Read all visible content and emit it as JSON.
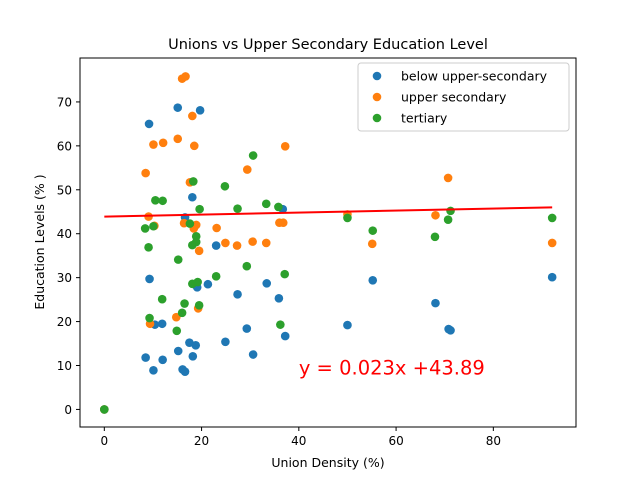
{
  "chart_data": {
    "type": "scatter",
    "title": "Unions vs Upper Secondary Education Level",
    "xlabel": "Union Density (%)",
    "ylabel": "Education Levels (% )",
    "xlim": [
      -5,
      97
    ],
    "ylim": [
      -4,
      80
    ],
    "x_ticks": [
      0,
      20,
      40,
      60,
      80
    ],
    "y_ticks": [
      0,
      10,
      20,
      30,
      40,
      50,
      60,
      70
    ],
    "x_tick_labels": [
      "0",
      "20",
      "40",
      "60",
      "80"
    ],
    "y_tick_labels": [
      "0",
      "10",
      "20",
      "30",
      "40",
      "50",
      "60",
      "70"
    ],
    "grid": false,
    "legend_position": "top-right",
    "series": [
      {
        "name": "below upper-secondary",
        "color": "#1f77b4",
        "points": [
          [
            0,
            0
          ],
          [
            8.5,
            11.8
          ],
          [
            9.2,
            65
          ],
          [
            9.3,
            29.7
          ],
          [
            10.1,
            8.9
          ],
          [
            10.4,
            19.3
          ],
          [
            11.9,
            19.5
          ],
          [
            12.0,
            11.3
          ],
          [
            15.1,
            68.7
          ],
          [
            15.2,
            13.3
          ],
          [
            16.1,
            9.1
          ],
          [
            16.6,
            8.6
          ],
          [
            16.6,
            43.7
          ],
          [
            17.5,
            15.2
          ],
          [
            18.1,
            48.3
          ],
          [
            18.2,
            12.1
          ],
          [
            18.5,
            28.5
          ],
          [
            18.8,
            14.6
          ],
          [
            19.1,
            27.8
          ],
          [
            19.7,
            68.1
          ],
          [
            21.3,
            28.5
          ],
          [
            23.0,
            37.3
          ],
          [
            24.9,
            15.4
          ],
          [
            27.4,
            26.2
          ],
          [
            29.3,
            18.4
          ],
          [
            30.6,
            12.5
          ],
          [
            33.4,
            28.7
          ],
          [
            35.9,
            25.3
          ],
          [
            36.7,
            45.6
          ],
          [
            37.2,
            16.7
          ],
          [
            50.0,
            19.2
          ],
          [
            55.2,
            29.4
          ],
          [
            68.1,
            24.2
          ],
          [
            70.8,
            18.3
          ],
          [
            71.2,
            18.0
          ],
          [
            92.1,
            30.1
          ]
        ]
      },
      {
        "name": "upper secondary",
        "color": "#ff7f0e",
        "points": [
          [
            0,
            0
          ],
          [
            8.5,
            53.8
          ],
          [
            9.1,
            43.9
          ],
          [
            9.4,
            19.5
          ],
          [
            10.1,
            60.3
          ],
          [
            10.3,
            41.8
          ],
          [
            12.1,
            60.7
          ],
          [
            14.8,
            21.0
          ],
          [
            15.1,
            61.6
          ],
          [
            16.0,
            75.3
          ],
          [
            16.7,
            75.8
          ],
          [
            16.4,
            42.4
          ],
          [
            17.6,
            51.7
          ],
          [
            18.1,
            66.8
          ],
          [
            18.4,
            41.2
          ],
          [
            18.5,
            60.0
          ],
          [
            18.9,
            42.0
          ],
          [
            19.3,
            23.0
          ],
          [
            19.5,
            36.1
          ],
          [
            23.1,
            41.3
          ],
          [
            24.9,
            37.9
          ],
          [
            27.3,
            37.3
          ],
          [
            29.4,
            54.6
          ],
          [
            30.5,
            38.2
          ],
          [
            33.3,
            37.9
          ],
          [
            36.0,
            42.5
          ],
          [
            36.8,
            42.5
          ],
          [
            37.2,
            59.9
          ],
          [
            50.0,
            44.4
          ],
          [
            55.1,
            37.7
          ],
          [
            68.1,
            44.2
          ],
          [
            70.7,
            52.7
          ],
          [
            92.1,
            37.9
          ]
        ]
      },
      {
        "name": "tertiary",
        "color": "#2ca02c",
        "points": [
          [
            0,
            0
          ],
          [
            8.4,
            41.2
          ],
          [
            9.1,
            36.9
          ],
          [
            9.3,
            20.8
          ],
          [
            10.1,
            41.7
          ],
          [
            10.5,
            47.6
          ],
          [
            11.9,
            25.1
          ],
          [
            12.0,
            47.5
          ],
          [
            14.9,
            17.9
          ],
          [
            15.2,
            34.1
          ],
          [
            16.0,
            22.0
          ],
          [
            16.5,
            24.1
          ],
          [
            17.6,
            42.3
          ],
          [
            18.1,
            37.4
          ],
          [
            18.1,
            28.6
          ],
          [
            18.3,
            51.9
          ],
          [
            18.9,
            39.4
          ],
          [
            18.9,
            38.1
          ],
          [
            19.2,
            29.0
          ],
          [
            19.5,
            23.7
          ],
          [
            19.6,
            45.6
          ],
          [
            23.0,
            30.3
          ],
          [
            24.8,
            50.8
          ],
          [
            27.4,
            45.7
          ],
          [
            29.3,
            32.6
          ],
          [
            30.6,
            57.8
          ],
          [
            33.3,
            46.8
          ],
          [
            35.8,
            46.1
          ],
          [
            36.2,
            19.3
          ],
          [
            37.1,
            30.8
          ],
          [
            50.0,
            43.6
          ],
          [
            55.2,
            40.7
          ],
          [
            68.0,
            39.3
          ],
          [
            70.7,
            43.2
          ],
          [
            71.2,
            45.2
          ],
          [
            92.1,
            43.6
          ]
        ]
      }
    ],
    "regression": {
      "slope": 0.023,
      "intercept": 43.89,
      "x_range": [
        0,
        92.1
      ],
      "color": "#ff0000",
      "equation_label": "y = 0.023x +43.89",
      "label_at": [
        40,
        8
      ]
    }
  }
}
